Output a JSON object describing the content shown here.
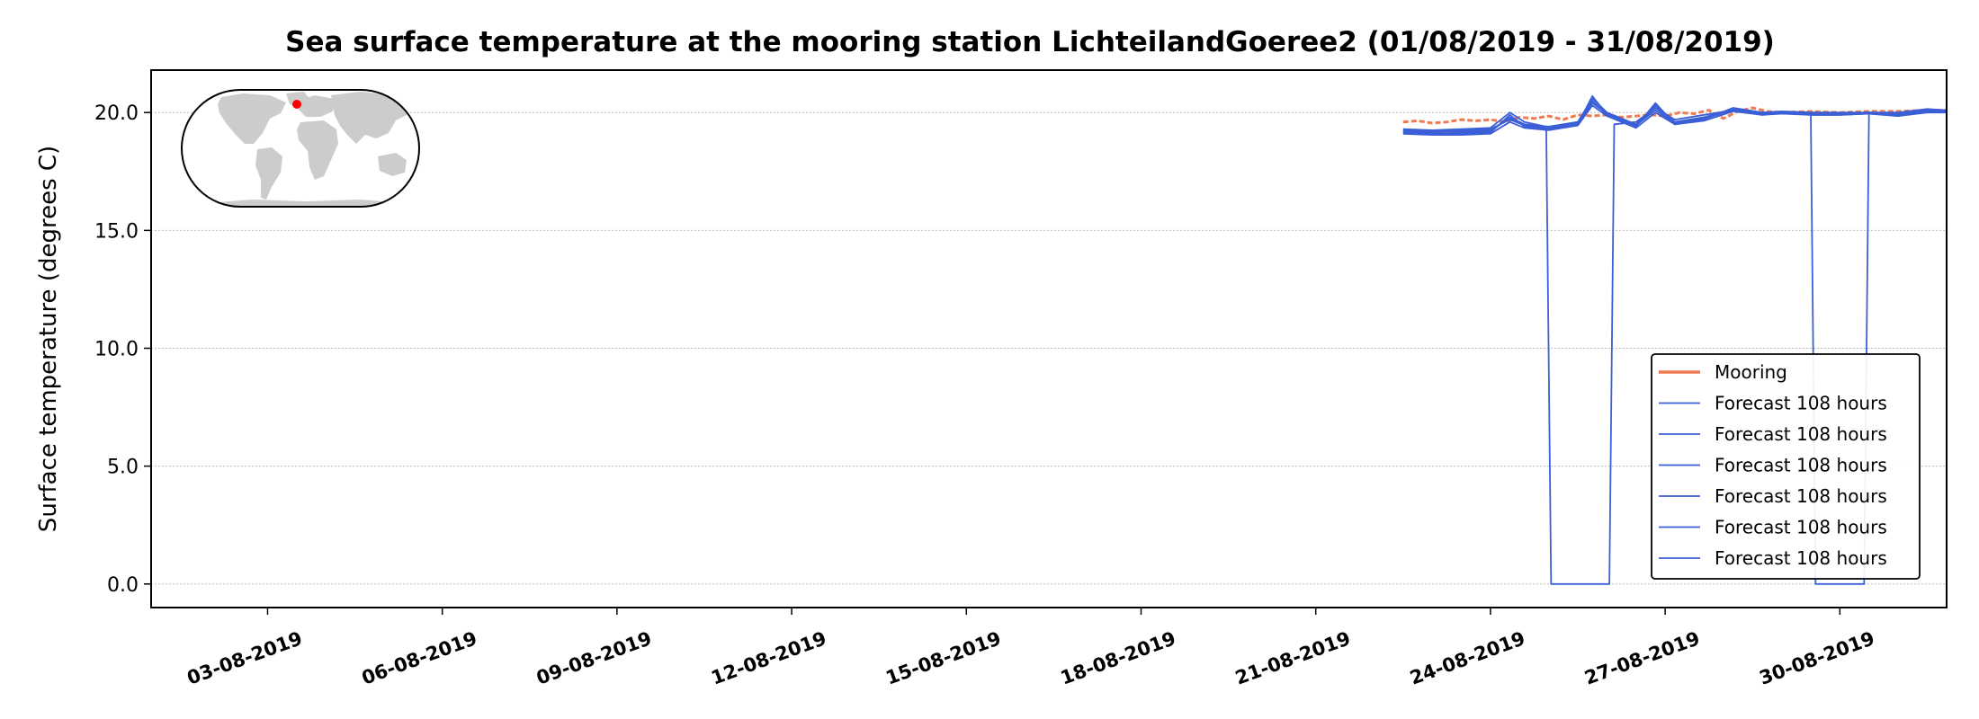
{
  "chart_data": {
    "type": "line",
    "title": "Sea surface temperature at the mooring station LichteilandGoeree2 (01/08/2019 - 31/08/2019)",
    "xlabel": "",
    "ylabel": "Surface temperature (degrees C)",
    "xlim": [
      "2019-08-01",
      "2019-08-31T20:00"
    ],
    "ylim": [
      -1.0,
      21.8
    ],
    "yticks": [
      0.0,
      5.0,
      10.0,
      15.0,
      20.0
    ],
    "ytick_labels": [
      "0.0",
      "5.0",
      "10.0",
      "15.0",
      "20.0"
    ],
    "xticks": [
      "2019-08-03",
      "2019-08-06",
      "2019-08-09",
      "2019-08-12",
      "2019-08-15",
      "2019-08-18",
      "2019-08-21",
      "2019-08-24",
      "2019-08-27",
      "2019-08-30"
    ],
    "xtick_labels": [
      "03-08-2019",
      "06-08-2019",
      "09-08-2019",
      "12-08-2019",
      "15-08-2019",
      "18-08-2019",
      "21-08-2019",
      "24-08-2019",
      "27-08-2019",
      "30-08-2019"
    ],
    "grid": "horizontal dotted",
    "legend_position": "lower-right",
    "inset": "world-map",
    "series": [
      {
        "name": "Mooring",
        "color": "#f07b50",
        "style": "dashed-early",
        "points": [
          [
            "2019-08-22T12:00",
            19.6
          ],
          [
            "2019-08-22T18:00",
            19.65
          ],
          [
            "2019-08-23T00:00",
            19.55
          ],
          [
            "2019-08-23T06:00",
            19.6
          ],
          [
            "2019-08-23T12:00",
            19.7
          ],
          [
            "2019-08-23T18:00",
            19.65
          ],
          [
            "2019-08-24T00:00",
            19.7
          ],
          [
            "2019-08-24T06:00",
            19.6
          ],
          [
            "2019-08-24T12:00",
            19.8
          ],
          [
            "2019-08-24T18:00",
            19.75
          ],
          [
            "2019-08-25T00:00",
            19.85
          ],
          [
            "2019-08-25T06:00",
            19.7
          ],
          [
            "2019-08-25T12:00",
            19.9
          ],
          [
            "2019-08-25T18:00",
            19.85
          ],
          [
            "2019-08-26T00:00",
            19.9
          ],
          [
            "2019-08-26T06:00",
            19.8
          ],
          [
            "2019-08-26T12:00",
            19.85
          ],
          [
            "2019-08-26T18:00",
            19.9
          ],
          [
            "2019-08-27T00:00",
            19.85
          ],
          [
            "2019-08-27T06:00",
            20.0
          ],
          [
            "2019-08-27T12:00",
            19.95
          ],
          [
            "2019-08-27T18:00",
            20.1
          ],
          [
            "2019-08-28T00:00",
            19.75
          ],
          [
            "2019-08-28T06:00",
            20.05
          ],
          [
            "2019-08-28T12:00",
            20.2
          ],
          [
            "2019-08-28T18:00",
            20.05
          ],
          [
            "2019-08-29T00:00",
            20.0
          ],
          [
            "2019-08-29T12:00",
            20.05
          ],
          [
            "2019-08-30T00:00",
            20.0
          ],
          [
            "2019-08-30T12:00",
            20.05
          ],
          [
            "2019-08-31T00:00",
            20.05
          ],
          [
            "2019-08-31T12:00",
            20.1
          ],
          [
            "2019-08-31T20:00",
            20.1
          ]
        ]
      },
      {
        "name": "Forecast 108 hours",
        "color": "#3a5fd6",
        "points": [
          [
            "2019-08-22T12:00",
            19.3
          ],
          [
            "2019-08-23T00:00",
            19.25
          ],
          [
            "2019-08-23T12:00",
            19.3
          ],
          [
            "2019-08-24T00:00",
            19.35
          ],
          [
            "2019-08-24T08:00",
            20.0
          ],
          [
            "2019-08-24T14:00",
            19.6
          ],
          [
            "2019-08-24T23:00",
            19.4
          ],
          [
            "2019-08-25T01:00",
            0.0
          ],
          [
            "2019-08-26T01:00",
            0.0
          ],
          [
            "2019-08-26T03:00",
            19.5
          ],
          [
            "2019-08-26T12:00",
            19.6
          ],
          [
            "2019-08-26T20:00",
            20.2
          ],
          [
            "2019-08-27T04:00",
            19.7
          ],
          [
            "2019-08-27T16:00",
            19.9
          ],
          [
            "2019-08-28T04:00",
            20.1
          ],
          [
            "2019-08-28T16:00",
            20.0
          ],
          [
            "2019-08-29T00:00",
            20.05
          ],
          [
            "2019-08-29T12:00",
            20.0
          ],
          [
            "2019-08-30T00:00",
            20.0
          ],
          [
            "2019-08-30T12:00",
            20.0
          ],
          [
            "2019-08-31T00:00",
            20.0
          ],
          [
            "2019-08-31T12:00",
            20.15
          ],
          [
            "2019-08-31T20:00",
            20.1
          ]
        ]
      },
      {
        "name": "Forecast 108 hours",
        "color": "#3a5fd6",
        "points": [
          [
            "2019-08-22T12:00",
            19.2
          ],
          [
            "2019-08-23T00:00",
            19.2
          ],
          [
            "2019-08-23T12:00",
            19.15
          ],
          [
            "2019-08-24T00:00",
            19.2
          ],
          [
            "2019-08-24T08:00",
            19.8
          ],
          [
            "2019-08-24T14:00",
            19.5
          ],
          [
            "2019-08-25T00:00",
            19.4
          ],
          [
            "2019-08-25T12:00",
            19.6
          ],
          [
            "2019-08-25T18:00",
            20.6
          ],
          [
            "2019-08-26T00:00",
            20.0
          ],
          [
            "2019-08-26T12:00",
            19.5
          ],
          [
            "2019-08-26T20:00",
            20.2
          ],
          [
            "2019-08-27T04:00",
            19.6
          ],
          [
            "2019-08-27T16:00",
            19.8
          ],
          [
            "2019-08-28T04:00",
            20.1
          ],
          [
            "2019-08-28T16:00",
            19.9
          ],
          [
            "2019-08-29T00:00",
            20.0
          ],
          [
            "2019-08-29T12:00",
            20.0
          ],
          [
            "2019-08-30T00:00",
            19.95
          ],
          [
            "2019-08-30T12:00",
            20.0
          ],
          [
            "2019-08-31T00:00",
            19.9
          ],
          [
            "2019-08-31T12:00",
            20.1
          ],
          [
            "2019-08-31T20:00",
            20.05
          ]
        ]
      },
      {
        "name": "Forecast 108 hours",
        "color": "#3a5fd6",
        "points": [
          [
            "2019-08-22T12:00",
            19.15
          ],
          [
            "2019-08-23T00:00",
            19.1
          ],
          [
            "2019-08-23T12:00",
            19.1
          ],
          [
            "2019-08-24T00:00",
            19.15
          ],
          [
            "2019-08-24T08:00",
            19.9
          ],
          [
            "2019-08-24T14:00",
            19.4
          ],
          [
            "2019-08-25T00:00",
            19.3
          ],
          [
            "2019-08-25T12:00",
            19.5
          ],
          [
            "2019-08-25T18:00",
            20.7
          ],
          [
            "2019-08-26T00:00",
            19.9
          ],
          [
            "2019-08-26T12:00",
            19.4
          ],
          [
            "2019-08-26T20:00",
            20.4
          ],
          [
            "2019-08-27T04:00",
            19.5
          ],
          [
            "2019-08-27T16:00",
            19.7
          ],
          [
            "2019-08-28T04:00",
            20.2
          ],
          [
            "2019-08-28T16:00",
            20.0
          ],
          [
            "2019-08-29T00:00",
            20.0
          ],
          [
            "2019-08-29T12:00",
            19.9
          ],
          [
            "2019-08-30T00:00",
            19.9
          ],
          [
            "2019-08-30T12:00",
            19.95
          ],
          [
            "2019-08-31T00:00",
            19.85
          ],
          [
            "2019-08-31T12:00",
            20.05
          ],
          [
            "2019-08-31T20:00",
            20.0
          ]
        ]
      },
      {
        "name": "Forecast 108 hours",
        "color": "#3a5fd6",
        "points": [
          [
            "2019-08-22T12:00",
            19.25
          ],
          [
            "2019-08-23T00:00",
            19.2
          ],
          [
            "2019-08-23T12:00",
            19.25
          ],
          [
            "2019-08-24T00:00",
            19.3
          ],
          [
            "2019-08-24T08:00",
            19.7
          ],
          [
            "2019-08-24T14:00",
            19.45
          ],
          [
            "2019-08-25T00:00",
            19.35
          ],
          [
            "2019-08-25T12:00",
            19.55
          ],
          [
            "2019-08-25T18:00",
            20.4
          ],
          [
            "2019-08-26T00:00",
            19.95
          ],
          [
            "2019-08-26T12:00",
            19.45
          ],
          [
            "2019-08-26T20:00",
            20.1
          ],
          [
            "2019-08-27T04:00",
            19.55
          ],
          [
            "2019-08-27T16:00",
            19.75
          ],
          [
            "2019-08-28T04:00",
            20.1
          ],
          [
            "2019-08-28T16:00",
            19.95
          ],
          [
            "2019-08-29T00:00",
            20.0
          ],
          [
            "2019-08-29T12:00",
            19.95
          ],
          [
            "2019-08-30T00:00",
            19.95
          ],
          [
            "2019-08-30T12:00",
            20.0
          ],
          [
            "2019-08-31T00:00",
            19.9
          ],
          [
            "2019-08-31T12:00",
            20.1
          ],
          [
            "2019-08-31T20:00",
            20.05
          ]
        ]
      },
      {
        "name": "Forecast 108 hours",
        "color": "#3a5fd6",
        "points": [
          [
            "2019-08-22T12:00",
            19.1
          ],
          [
            "2019-08-23T00:00",
            19.05
          ],
          [
            "2019-08-23T12:00",
            19.05
          ],
          [
            "2019-08-24T00:00",
            19.1
          ],
          [
            "2019-08-24T08:00",
            19.6
          ],
          [
            "2019-08-24T14:00",
            19.35
          ],
          [
            "2019-08-25T00:00",
            19.25
          ],
          [
            "2019-08-25T12:00",
            19.45
          ],
          [
            "2019-08-25T18:00",
            20.3
          ],
          [
            "2019-08-26T00:00",
            19.85
          ],
          [
            "2019-08-26T12:00",
            19.35
          ],
          [
            "2019-08-26T20:00",
            20.0
          ],
          [
            "2019-08-27T04:00",
            19.5
          ],
          [
            "2019-08-27T16:00",
            19.65
          ],
          [
            "2019-08-28T04:00",
            20.05
          ],
          [
            "2019-08-28T16:00",
            19.9
          ],
          [
            "2019-08-29T00:00",
            19.95
          ],
          [
            "2019-08-29T12:00",
            19.9
          ],
          [
            "2019-08-30T00:00",
            19.9
          ],
          [
            "2019-08-30T12:00",
            19.95
          ],
          [
            "2019-08-31T00:00",
            19.85
          ],
          [
            "2019-08-31T12:00",
            20.0
          ],
          [
            "2019-08-31T20:00",
            20.0
          ]
        ]
      },
      {
        "name": "Forecast 108 hours",
        "color": "#3a5fd6",
        "points": [
          [
            "2019-08-22T12:00",
            19.2
          ],
          [
            "2019-08-23T00:00",
            19.15
          ],
          [
            "2019-08-23T12:00",
            19.2
          ],
          [
            "2019-08-24T00:00",
            19.25
          ],
          [
            "2019-08-24T08:00",
            19.75
          ],
          [
            "2019-08-24T14:00",
            19.5
          ],
          [
            "2019-08-25T00:00",
            19.35
          ],
          [
            "2019-08-25T12:00",
            19.55
          ],
          [
            "2019-08-25T18:00",
            20.5
          ],
          [
            "2019-08-26T00:00",
            19.9
          ],
          [
            "2019-08-26T12:00",
            19.5
          ],
          [
            "2019-08-26T20:00",
            20.3
          ],
          [
            "2019-08-27T04:00",
            19.6
          ],
          [
            "2019-08-27T16:00",
            19.8
          ],
          [
            "2019-08-28T04:00",
            20.15
          ],
          [
            "2019-08-28T16:00",
            20.0
          ],
          [
            "2019-08-29T00:00",
            20.0
          ],
          [
            "2019-08-29T12:00",
            19.95
          ],
          [
            "2019-08-29T14:00",
            0.0
          ],
          [
            "2019-08-30T10:00",
            0.0
          ],
          [
            "2019-08-30T12:00",
            20.0
          ],
          [
            "2019-08-31T00:00",
            19.95
          ],
          [
            "2019-08-31T12:00",
            20.1
          ],
          [
            "2019-08-31T20:00",
            20.05
          ]
        ]
      }
    ]
  },
  "colors": {
    "map_land": "#cccccc",
    "station_marker": "#ff0000"
  }
}
